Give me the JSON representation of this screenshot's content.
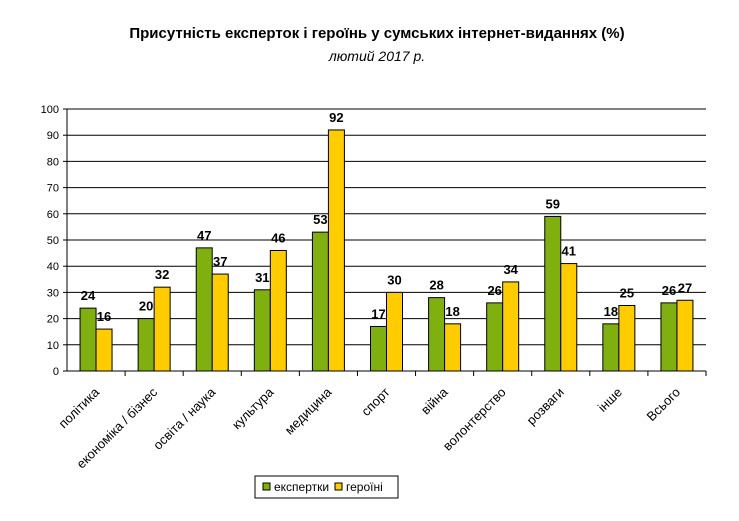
{
  "chart_data": {
    "type": "bar",
    "title": "Присутність експерток і героїнь у сумських інтернет-виданнях (%)",
    "subtitle": "лютий 2017 р.",
    "categories": [
      "політика",
      "економіка / бізнес",
      "освіта / наука",
      "культура",
      "медицина",
      "спорт",
      "війна",
      "волонтерство",
      "розваги",
      "інше",
      "Всього"
    ],
    "series": [
      {
        "name": "експертки",
        "color": "#80b010",
        "values": [
          24,
          20,
          47,
          31,
          53,
          17,
          28,
          26,
          59,
          18,
          26
        ]
      },
      {
        "name": "героїні",
        "color": "#ffcc00",
        "values": [
          16,
          32,
          37,
          46,
          92,
          30,
          18,
          34,
          41,
          25,
          27
        ]
      }
    ],
    "ylim": [
      0,
      100
    ],
    "yticks": [
      0,
      10,
      20,
      30,
      40,
      50,
      60,
      70,
      80,
      90,
      100
    ],
    "grid": true,
    "legend": "bottom",
    "data_labels": true
  }
}
